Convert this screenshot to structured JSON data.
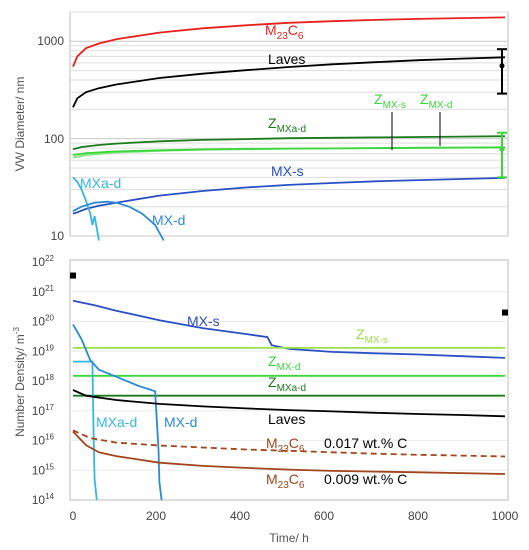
{
  "chart_data": [
    {
      "type": "line",
      "ylabel": "VW Diameter/ nm",
      "yscale": "log",
      "ylim": [
        10,
        2000
      ],
      "xlim": [
        0,
        1000
      ],
      "yticks": [
        "10",
        "100",
        "1000"
      ],
      "grid": true,
      "series": [
        {
          "name": "M23C6",
          "color": "#e8201e",
          "x": [
            0,
            10,
            30,
            60,
            100,
            200,
            300,
            400,
            500,
            600,
            700,
            800,
            900,
            1000
          ],
          "y": [
            550,
            700,
            850,
            950,
            1050,
            1230,
            1360,
            1460,
            1550,
            1610,
            1660,
            1700,
            1730,
            1760
          ]
        },
        {
          "name": "Laves",
          "color": "#000000",
          "x": [
            0,
            10,
            30,
            60,
            100,
            200,
            300,
            400,
            500,
            600,
            700,
            800,
            900,
            1000
          ],
          "y": [
            210,
            260,
            300,
            330,
            360,
            420,
            465,
            505,
            545,
            580,
            610,
            640,
            665,
            685
          ]
        },
        {
          "name": "ZMXa-d",
          "color": "#1c7a1c",
          "x": [
            0,
            20,
            60,
            100,
            200,
            300,
            400,
            500,
            600,
            700,
            800,
            900,
            1000
          ],
          "y": [
            78,
            82,
            86,
            89,
            94,
            97,
            99,
            101,
            102,
            103,
            104,
            105,
            106
          ]
        },
        {
          "name": "ZMX-d",
          "color": "#7ae87a",
          "x": [
            0,
            30,
            100,
            200,
            300,
            400,
            500,
            600,
            700,
            800,
            900,
            1000
          ],
          "y": [
            64,
            68,
            72,
            75,
            77,
            78,
            79,
            79.5,
            80,
            80.5,
            81,
            81.5
          ]
        },
        {
          "name": "ZMX-s",
          "color": "#3ad63a",
          "x": [
            0,
            30,
            100,
            200,
            300,
            400,
            500,
            600,
            700,
            800,
            900,
            1000
          ],
          "y": [
            68,
            71,
            74,
            76,
            77.5,
            78.5,
            79,
            79.5,
            80,
            80.5,
            81,
            81.5
          ]
        },
        {
          "name": "MX-s",
          "color": "#2a4fc4",
          "x": [
            0,
            10,
            30,
            60,
            100,
            200,
            300,
            400,
            500,
            600,
            700,
            800,
            900,
            1000
          ],
          "y": [
            17,
            17.5,
            19,
            20.5,
            22,
            26,
            29,
            31.5,
            33.5,
            35,
            36.5,
            37.5,
            38.5,
            39.5
          ]
        },
        {
          "name": "MXa-d",
          "color": "#35b8e0",
          "x": [
            0,
            10,
            20,
            30,
            40,
            45,
            50,
            55,
            60
          ],
          "y": [
            40,
            36,
            30,
            23,
            17,
            13,
            16,
            12,
            9
          ]
        },
        {
          "name": "MX-d",
          "color": "#2b8ad6",
          "x": [
            0,
            20,
            50,
            80,
            100,
            130,
            160,
            190,
            210
          ],
          "y": [
            18,
            20,
            22,
            22.5,
            22,
            20,
            17,
            13,
            9
          ]
        }
      ],
      "error_bars": [
        {
          "color": "#000000",
          "x": 1000,
          "y": 560,
          "low": 290,
          "high": 830
        },
        {
          "color": "#3ad63a",
          "x": 1000,
          "y": 78,
          "low": 40,
          "high": 115
        }
      ],
      "labels": {
        "M23C6": {
          "main": "M",
          "sub1": "23",
          "mid": "C",
          "sub2": "6"
        },
        "Laves": "Laves",
        "ZMXs": {
          "main": "Z",
          "sub": "MX-s"
        },
        "ZMXd": {
          "main": "Z",
          "sub": "MX-d"
        },
        "ZMXad": {
          "main": "Z",
          "sub": "MXa-d"
        },
        "MXs": "MX-s",
        "MXad": "MXa-d",
        "MXd": "MX-d"
      }
    },
    {
      "type": "line",
      "ylabel": "Number Density/ m",
      "ylabel_sup": "-3",
      "xlabel": "Time/ h",
      "yscale": "log",
      "ylim": [
        100000000000000.0,
        1e+22
      ],
      "xlim": [
        0,
        1000
      ],
      "xticks": [
        "0",
        "200",
        "400",
        "600",
        "800",
        "1000"
      ],
      "yticks_base": "10",
      "yticks_exp": [
        "14",
        "15",
        "16",
        "17",
        "18",
        "19",
        "20",
        "21",
        "22"
      ],
      "series": [
        {
          "name": "MX-s",
          "color": "#2a4fc4",
          "x": [
            0,
            50,
            100,
            200,
            300,
            400,
            450,
            460,
            500,
            600,
            700,
            800,
            900,
            1000
          ],
          "y": [
            5e+20,
            3.5e+20,
            2.3e+20,
            1.1e+20,
            6e+19,
            3.8e+19,
            3e+19,
            1.6e+19,
            1.2e+19,
            9.5e+18,
            8.5e+18,
            7.8e+18,
            6.8e+18,
            6e+18
          ]
        },
        {
          "name": "ZMX-s",
          "color": "#9be04a",
          "x": [
            0,
            1000
          ],
          "y": [
            1.3e+19,
            1.3e+19
          ]
        },
        {
          "name": "ZMX-d",
          "color": "#3ad63a",
          "x": [
            0,
            1000
          ],
          "y": [
            1.5e+18,
            1.5e+18
          ]
        },
        {
          "name": "ZMXa-d",
          "color": "#1c7a1c",
          "x": [
            0,
            1000
          ],
          "y": [
            3.2e+17,
            3.2e+17
          ]
        },
        {
          "name": "MXa-d",
          "color": "#35b8e0",
          "x": [
            0,
            45,
            46,
            48,
            50,
            55
          ],
          "y": [
            4.5e+18,
            4.5e+18,
            4e+17,
            1e+16,
            500000000000000.0,
            100000000000000.0
          ]
        },
        {
          "name": "MX-d",
          "color": "#2b8ad6",
          "x": [
            0,
            20,
            40,
            60,
            100,
            150,
            190,
            198,
            200,
            205
          ],
          "y": [
            8e+19,
            2.5e+19,
            5e+18,
            2.4e+18,
            1.4e+18,
            7e+17,
            4.5e+17,
            5000000000000000.0,
            400000000000000.0,
            100000000000000.0
          ]
        },
        {
          "name": "Laves",
          "color": "#000000",
          "x": [
            0,
            30,
            100,
            200,
            300,
            400,
            500,
            600,
            700,
            800,
            900,
            1000
          ],
          "y": [
            5e+17,
            3.2e+17,
            2.3e+17,
            1.7e+17,
            1.4e+17,
            1.2e+17,
            1.05e+17,
            9.5e+16,
            8.5e+16,
            7.8e+16,
            7.2e+16,
            6.5e+16
          ]
        },
        {
          "name": "M23C6 0.017 wt.% C",
          "color": "#a0451c",
          "dash": true,
          "x": [
            0,
            40,
            100,
            200,
            300,
            400,
            500,
            600,
            700,
            800,
            900,
            1000
          ],
          "y": [
            2.2e+16,
            1.2e+16,
            8500000000000000.0,
            6800000000000000.0,
            5800000000000000.0,
            5000000000000000.0,
            4500000000000000.0,
            4000000000000000.0,
            3600000000000000.0,
            3300000000000000.0,
            3100000000000000.0,
            2900000000000000.0
          ]
        },
        {
          "name": "M23C6 0.009 wt.% C",
          "color": "#a0451c",
          "x": [
            0,
            30,
            60,
            100,
            200,
            300,
            400,
            500,
            600,
            700,
            800,
            900,
            1000
          ],
          "y": [
            2e+16,
            7000000000000000.0,
            4000000000000000.0,
            3000000000000000.0,
            1800000000000000.0,
            1400000000000000.0,
            1200000000000000.0,
            1050000000000000.0,
            950000000000000.0,
            900000000000000.0,
            850000000000000.0,
            800000000000000.0,
            750000000000000.0
          ]
        }
      ],
      "points": [
        {
          "x": 0,
          "y": 3.5e+21
        },
        {
          "x": 1000,
          "y": 2e+20
        }
      ],
      "labels": {
        "MXs": "MX-s",
        "ZMXs": {
          "main": "Z",
          "sub": "MX-s"
        },
        "ZMXd": {
          "main": "Z",
          "sub": "MX-d"
        },
        "ZMXad": {
          "main": "Z",
          "sub": "MXa-d"
        },
        "Laves": "Laves",
        "MXad": "MXa-d",
        "MXd": "MX-d",
        "M23C6a": {
          "main": "M",
          "sub1": "23",
          "mid": "C",
          "sub2": "6",
          "note": "0.017 wt.% C"
        },
        "M23C6b": {
          "main": "M",
          "sub1": "23",
          "mid": "C",
          "sub2": "6",
          "note": "0.009 wt.% C"
        }
      }
    }
  ]
}
